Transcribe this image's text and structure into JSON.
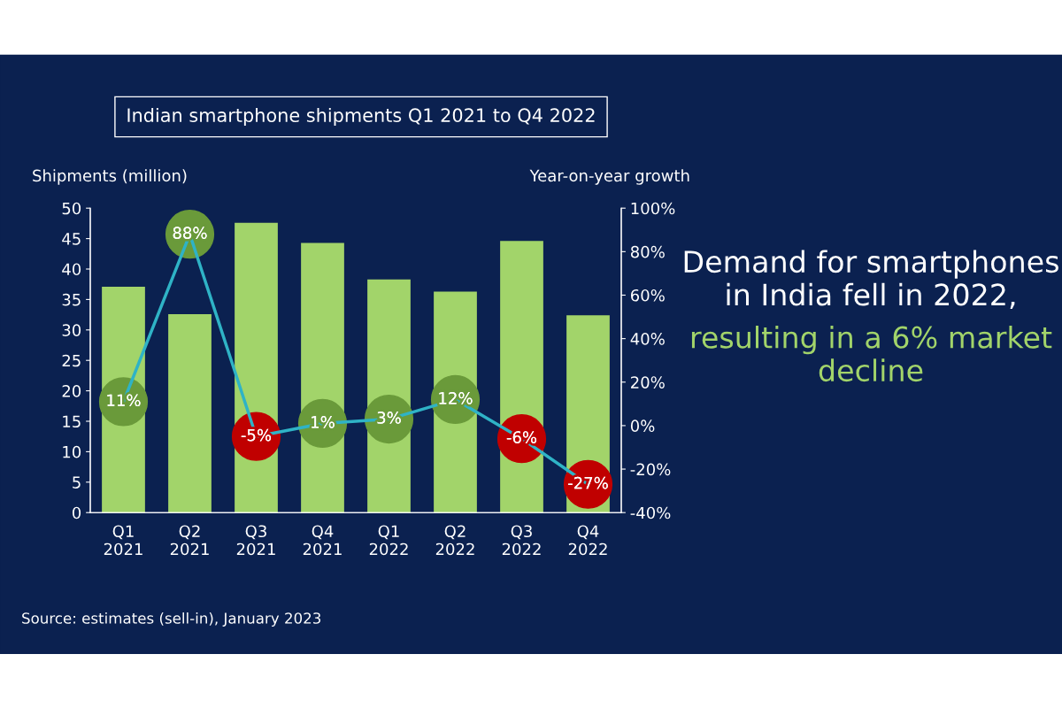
{
  "chart_data": {
    "type": "bar",
    "title": "Indian smartphone shipments Q1 2021 to Q4 2022",
    "ylabel": "Shipments (million)",
    "y2label": "Year-on-year growth",
    "categories": [
      "Q1\n2021",
      "Q2\n2021",
      "Q3\n2021",
      "Q4\n2021",
      "Q1\n2022",
      "Q2\n2022",
      "Q3\n2022",
      "Q4\n2022"
    ],
    "series": [
      {
        "color": "#a2d46a",
        "values": [
          37.1,
          32.6,
          47.6,
          44.3,
          38.3,
          36.3,
          44.6,
          32.4
        ]
      },
      {
        "type": "line",
        "axis": "y2",
        "color": "#2fb3c6",
        "colors": [
          "#6a9a3a",
          "#6a9a3a",
          "#c00000",
          "#6a9a3a",
          "#6a9a3a",
          "#6a9a3a",
          "#c00000",
          "#c00000"
        ],
        "values": [
          11,
          88,
          -5,
          1,
          3,
          12,
          -6,
          -27
        ],
        "value_labels": [
          "11%",
          "88%",
          "-5%",
          "1%",
          "3%",
          "12%",
          "-6%",
          "-27%"
        ]
      }
    ],
    "ylim": [
      0,
      50
    ],
    "yticks": [
      0,
      5,
      10,
      15,
      20,
      25,
      30,
      35,
      40,
      45,
      50
    ],
    "y2lim": [
      -40,
      100
    ],
    "y2ticks": [
      {
        "value": -40,
        "label": "-40%"
      },
      {
        "value": -20,
        "label": "-20%"
      },
      {
        "value": 0,
        "label": "0%"
      },
      {
        "value": 20,
        "label": "20%"
      },
      {
        "value": 40,
        "label": "40%"
      },
      {
        "value": 60,
        "label": "60%"
      },
      {
        "value": 80,
        "label": "80%"
      },
      {
        "value": 100,
        "label": "100%"
      }
    ],
    "grid": false,
    "annotations": [
      "Demand for smartphones in India fell in 2022,",
      "resulting in a 6% market decline",
      "Source: estimates (sell-in), January 2023"
    ]
  }
}
